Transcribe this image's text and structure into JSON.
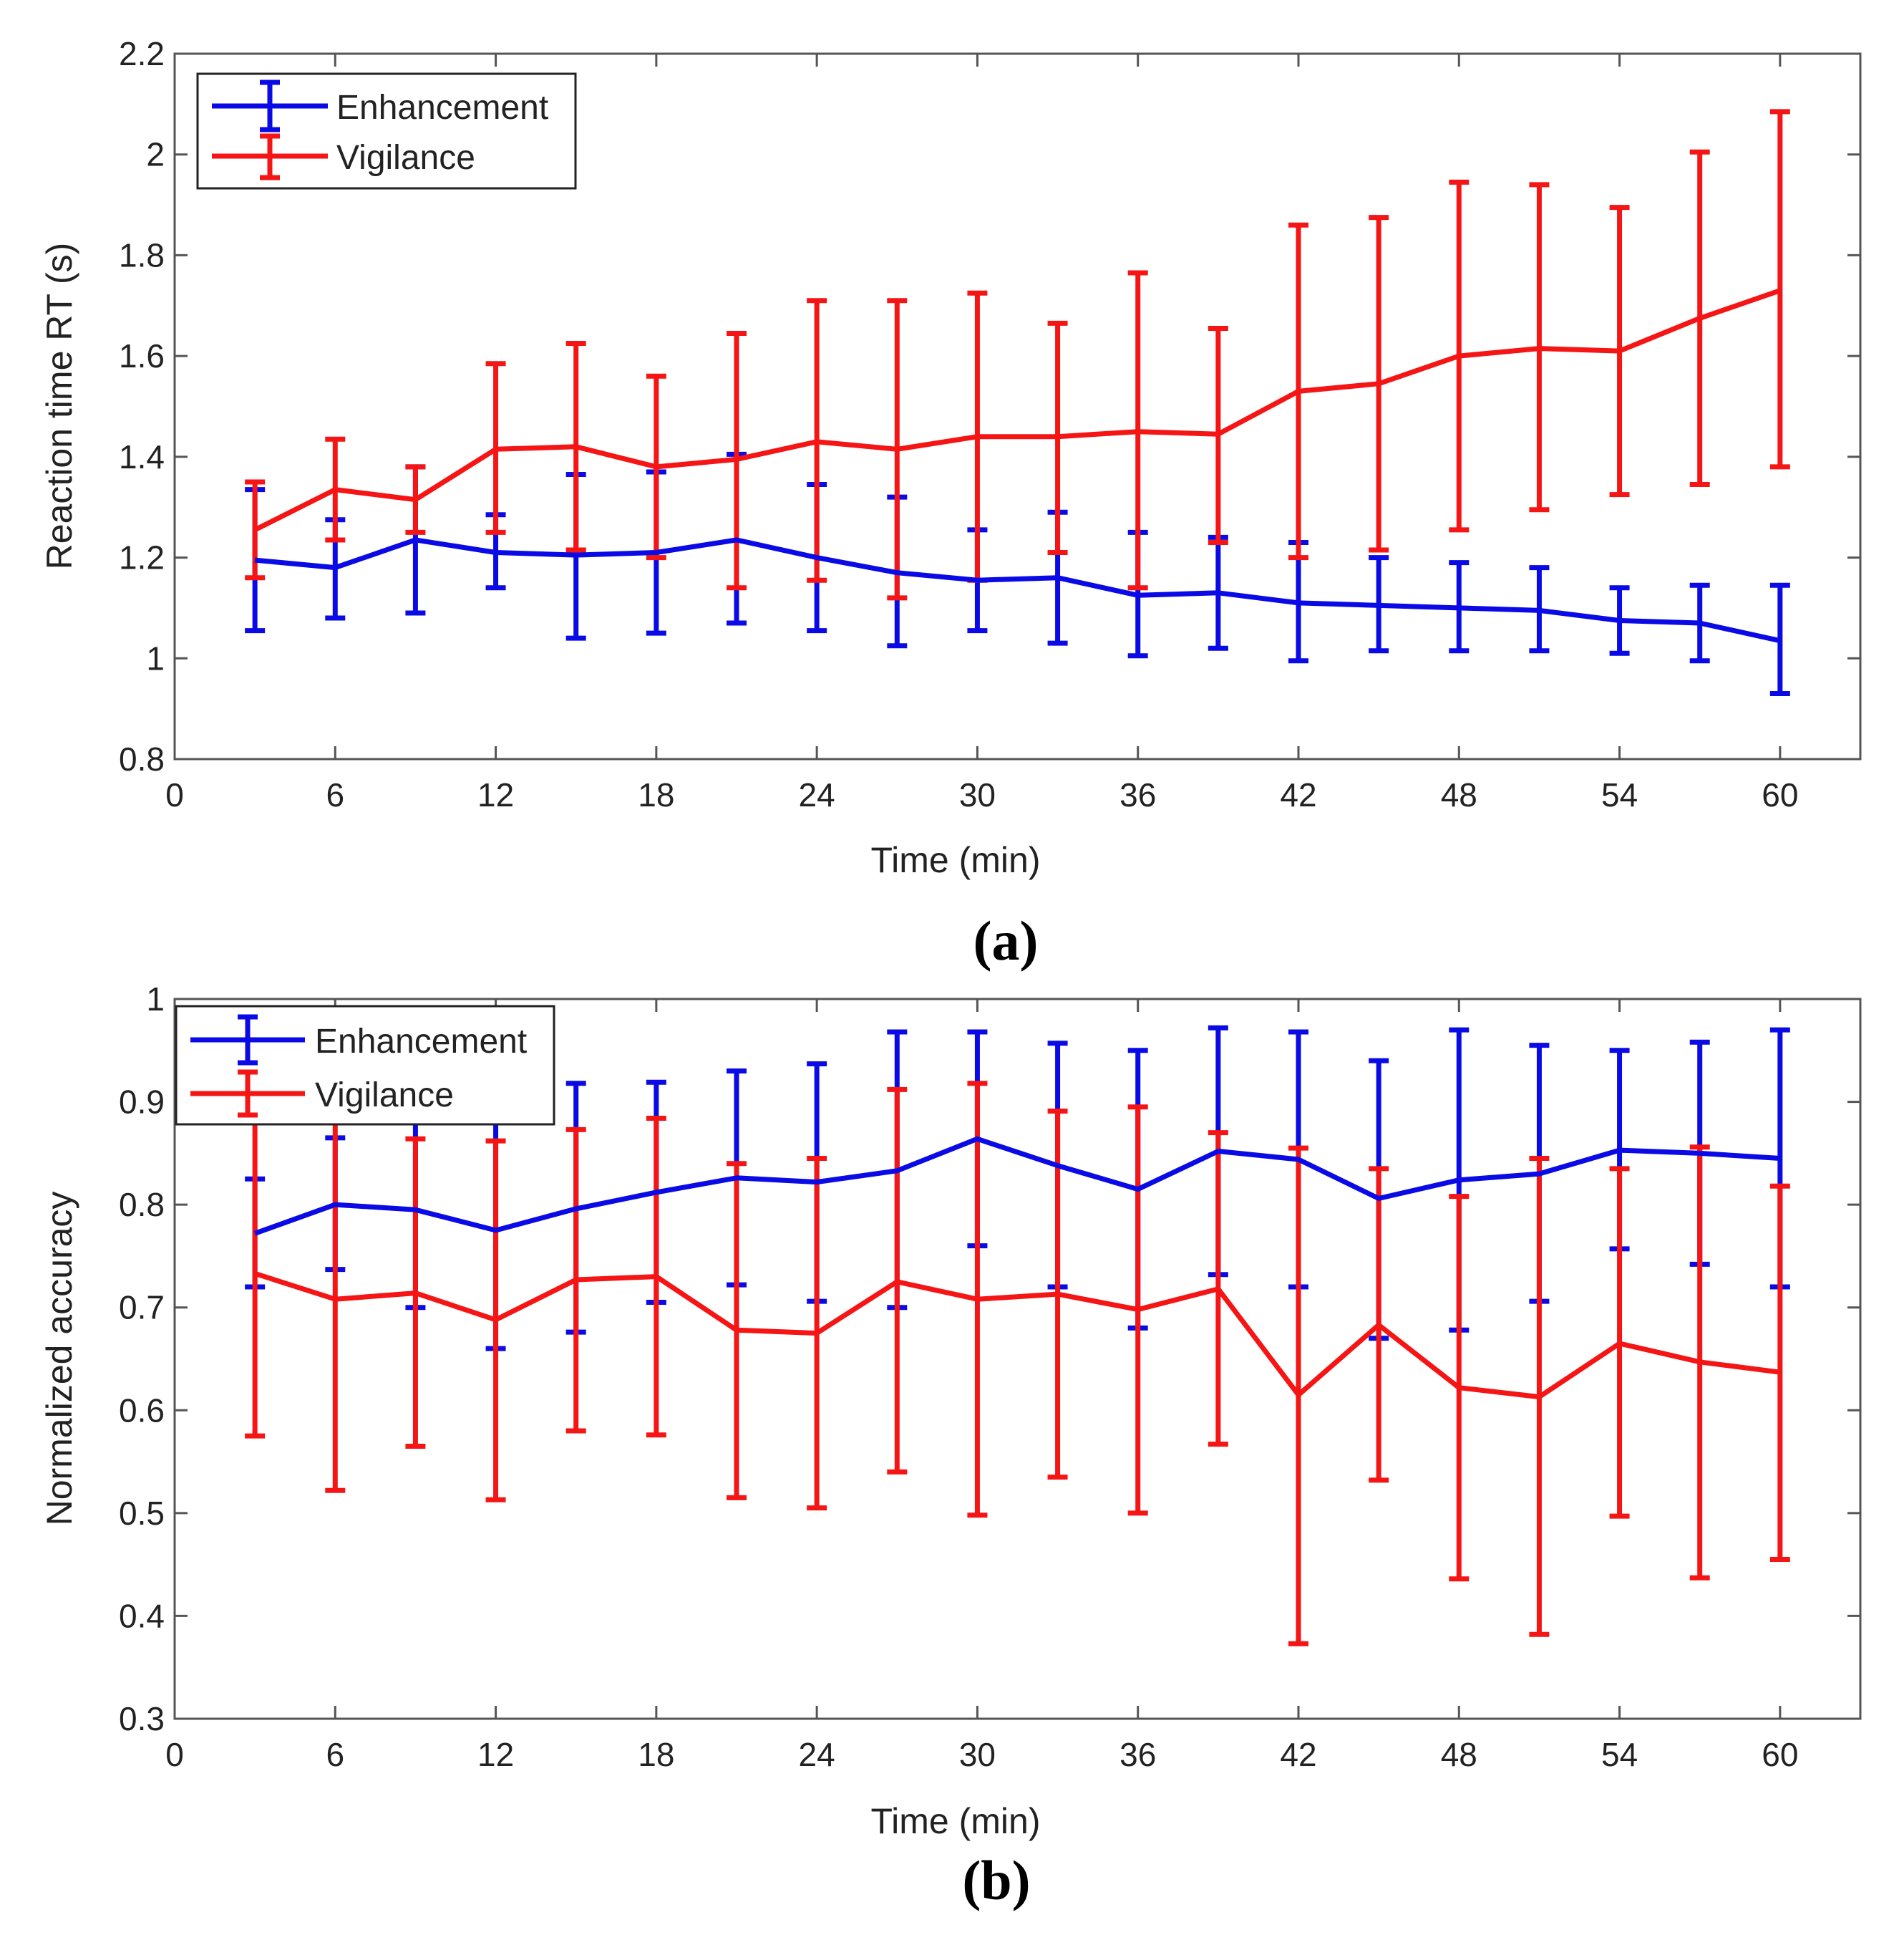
{
  "chart_data": [
    {
      "type": "line",
      "panel_label": "(a)",
      "title": "",
      "xlabel": "Time (min)",
      "ylabel": "Reaction time RT (s)",
      "xlim": [
        0,
        63
      ],
      "ylim": [
        0.8,
        2.2
      ],
      "xticks": [
        0,
        6,
        12,
        18,
        24,
        30,
        36,
        42,
        48,
        54,
        60
      ],
      "xtick_labels": [
        "0",
        "6",
        "12",
        "18",
        "24",
        "30",
        "36",
        "42",
        "48",
        "54",
        "60"
      ],
      "yticks": [
        0.8,
        1,
        1.2,
        1.4,
        1.6,
        1.8,
        2,
        2.2
      ],
      "ytick_labels": [
        "0.8",
        "1",
        "1.2",
        "1.4",
        "1.6",
        "1.8",
        "2",
        "2.2"
      ],
      "grid": false,
      "legend_position": "top-left",
      "x": [
        3,
        6,
        9,
        12,
        15,
        18,
        21,
        24,
        27,
        30,
        33,
        36,
        39,
        42,
        45,
        48,
        51,
        54,
        57,
        60
      ],
      "series": [
        {
          "name": "Enhancement",
          "color": "#0a0ae6",
          "values": [
            1.195,
            1.18,
            1.235,
            1.21,
            1.205,
            1.21,
            1.235,
            1.2,
            1.17,
            1.155,
            1.16,
            1.125,
            1.13,
            1.11,
            1.105,
            1.1,
            1.095,
            1.075,
            1.07,
            1.035
          ],
          "err_low": [
            1.055,
            1.08,
            1.09,
            1.14,
            1.04,
            1.05,
            1.07,
            1.055,
            1.025,
            1.055,
            1.03,
            1.005,
            1.02,
            0.995,
            1.015,
            1.015,
            1.015,
            1.01,
            0.995,
            0.93
          ],
          "err_high": [
            1.335,
            1.275,
            1.38,
            1.285,
            1.365,
            1.37,
            1.405,
            1.345,
            1.32,
            1.255,
            1.29,
            1.25,
            1.24,
            1.23,
            1.2,
            1.19,
            1.18,
            1.14,
            1.145,
            1.145
          ]
        },
        {
          "name": "Vigilance",
          "color": "#f51515",
          "values": [
            1.255,
            1.335,
            1.315,
            1.415,
            1.42,
            1.38,
            1.395,
            1.43,
            1.415,
            1.44,
            1.44,
            1.45,
            1.445,
            1.53,
            1.545,
            1.6,
            1.615,
            1.61,
            1.675,
            1.73
          ],
          "err_low": [
            1.16,
            1.235,
            1.25,
            1.25,
            1.215,
            1.2,
            1.14,
            1.155,
            1.12,
            1.155,
            1.21,
            1.14,
            1.23,
            1.2,
            1.215,
            1.255,
            1.295,
            1.325,
            1.345,
            1.38
          ],
          "err_high": [
            1.35,
            1.435,
            1.38,
            1.585,
            1.625,
            1.56,
            1.645,
            1.71,
            1.71,
            1.725,
            1.665,
            1.765,
            1.655,
            1.86,
            1.875,
            1.945,
            1.94,
            1.895,
            2.005,
            2.085
          ]
        }
      ]
    },
    {
      "type": "line",
      "panel_label": "(b)",
      "title": "",
      "xlabel": "Time (min)",
      "ylabel": "Normalized accuracy",
      "xlim": [
        0,
        63
      ],
      "ylim": [
        0.3,
        1
      ],
      "xticks": [
        0,
        6,
        12,
        18,
        24,
        30,
        36,
        42,
        48,
        54,
        60
      ],
      "xtick_labels": [
        "0",
        "6",
        "12",
        "18",
        "24",
        "30",
        "36",
        "42",
        "48",
        "54",
        "60"
      ],
      "yticks": [
        0.3,
        0.4,
        0.5,
        0.6,
        0.7,
        0.8,
        0.9,
        1
      ],
      "ytick_labels": [
        "0.3",
        "0.4",
        "0.5",
        "0.6",
        "0.7",
        "0.8",
        "0.9",
        "1"
      ],
      "grid": false,
      "legend_position": "top-left",
      "x": [
        3,
        6,
        9,
        12,
        15,
        18,
        21,
        24,
        27,
        30,
        33,
        36,
        39,
        42,
        45,
        48,
        51,
        54,
        57,
        60
      ],
      "series": [
        {
          "name": "Enhancement",
          "color": "#0a0ae6",
          "values": [
            0.772,
            0.8,
            0.795,
            0.775,
            0.796,
            0.812,
            0.826,
            0.822,
            0.833,
            0.864,
            0.838,
            0.815,
            0.852,
            0.844,
            0.806,
            0.824,
            0.83,
            0.853,
            0.85,
            0.845
          ],
          "err_low": [
            0.72,
            0.737,
            0.7,
            0.66,
            0.676,
            0.705,
            0.722,
            0.706,
            0.7,
            0.76,
            0.72,
            0.68,
            0.732,
            0.72,
            0.67,
            0.678,
            0.706,
            0.757,
            0.742,
            0.72
          ],
          "err_high": [
            0.825,
            0.865,
            0.89,
            0.89,
            0.918,
            0.919,
            0.93,
            0.937,
            0.968,
            0.968,
            0.957,
            0.95,
            0.972,
            0.968,
            0.94,
            0.97,
            0.955,
            0.95,
            0.958,
            0.97
          ]
        },
        {
          "name": "Vigilance",
          "color": "#f51515",
          "values": [
            0.733,
            0.708,
            0.714,
            0.688,
            0.727,
            0.73,
            0.678,
            0.675,
            0.725,
            0.708,
            0.713,
            0.698,
            0.718,
            0.615,
            0.683,
            0.622,
            0.613,
            0.665,
            0.647,
            0.637
          ],
          "err_low": [
            0.575,
            0.522,
            0.565,
            0.513,
            0.58,
            0.576,
            0.515,
            0.505,
            0.54,
            0.498,
            0.535,
            0.5,
            0.567,
            0.373,
            0.532,
            0.436,
            0.382,
            0.497,
            0.437,
            0.455
          ],
          "err_high": [
            0.89,
            0.893,
            0.864,
            0.862,
            0.873,
            0.884,
            0.84,
            0.845,
            0.912,
            0.918,
            0.891,
            0.895,
            0.87,
            0.855,
            0.835,
            0.808,
            0.845,
            0.835,
            0.856,
            0.818
          ]
        }
      ]
    }
  ]
}
